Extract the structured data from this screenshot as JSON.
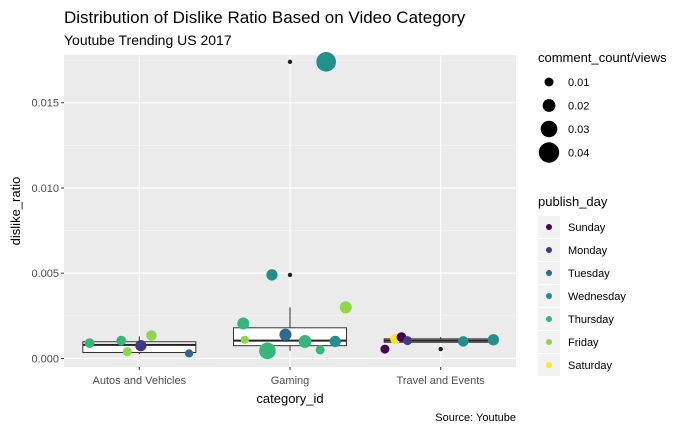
{
  "chart_data": {
    "type": "scatter",
    "title": "Distribution of Dislike Ratio Based on Video Category",
    "subtitle": "Youtube Trending US 2017",
    "xlabel": "category_id",
    "ylabel": "dislike_ratio",
    "caption": "Source: Youtube",
    "categories": [
      "Autos and Vehicles",
      "Gaming",
      "Travel and Events"
    ],
    "ylim": [
      -0.0005,
      0.0178
    ],
    "yticks": [
      0.0,
      0.005,
      0.01,
      0.015
    ],
    "ytick_labels": [
      "0.000",
      "0.005",
      "0.010",
      "0.015"
    ],
    "grid": true,
    "legend_placement": "right",
    "size_legend": {
      "title": "comment_count/views",
      "values": [
        0.01,
        0.02,
        0.03,
        0.04
      ],
      "labels": [
        "0.01",
        "0.02",
        "0.03",
        "0.04"
      ]
    },
    "color_legend": {
      "title": "publish_day",
      "items": [
        {
          "label": "Sunday",
          "color": "#440154"
        },
        {
          "label": "Monday",
          "color": "#443a83"
        },
        {
          "label": "Tuesday",
          "color": "#31688e"
        },
        {
          "label": "Wednesday",
          "color": "#21908c"
        },
        {
          "label": "Thursday",
          "color": "#35b779"
        },
        {
          "label": "Friday",
          "color": "#8fd744"
        },
        {
          "label": "Saturday",
          "color": "#fde725"
        }
      ]
    },
    "boxplots": [
      {
        "category": "Autos and Vehicles",
        "q1": 0.00035,
        "median": 0.0008,
        "q3": 0.00098,
        "whisker_low": 0.00025,
        "whisker_high": 0.0013
      },
      {
        "category": "Gaming",
        "q1": 0.00075,
        "median": 0.00105,
        "q3": 0.0018,
        "whisker_low": 0.00045,
        "whisker_high": 0.003,
        "outliers": [
          0.0049,
          0.0174
        ]
      },
      {
        "category": "Travel and Events",
        "q1": 0.00095,
        "median": 0.00105,
        "q3": 0.00115,
        "whisker_low": 0.00095,
        "whisker_high": 0.00125,
        "outliers": [
          0.00055
        ]
      }
    ],
    "points": [
      {
        "category": "Autos and Vehicles",
        "offset": -0.33,
        "y": 0.0009,
        "day": "Thursday",
        "size": 0.012
      },
      {
        "category": "Autos and Vehicles",
        "offset": -0.12,
        "y": 0.00105,
        "day": "Thursday",
        "size": 0.012
      },
      {
        "category": "Autos and Vehicles",
        "offset": -0.08,
        "y": 0.0004,
        "day": "Friday",
        "size": 0.01
      },
      {
        "category": "Autos and Vehicles",
        "offset": 0.01,
        "y": 0.00075,
        "day": "Monday",
        "size": 0.016
      },
      {
        "category": "Autos and Vehicles",
        "offset": 0.08,
        "y": 0.00135,
        "day": "Friday",
        "size": 0.014
      },
      {
        "category": "Autos and Vehicles",
        "offset": 0.33,
        "y": 0.0003,
        "day": "Tuesday",
        "size": 0.008
      },
      {
        "category": "Gaming",
        "offset": -0.31,
        "y": 0.00205,
        "day": "Thursday",
        "size": 0.018
      },
      {
        "category": "Gaming",
        "offset": -0.3,
        "y": 0.0011,
        "day": "Friday",
        "size": 0.008
      },
      {
        "category": "Gaming",
        "offset": -0.15,
        "y": 0.00045,
        "day": "Thursday",
        "size": 0.03
      },
      {
        "category": "Gaming",
        "offset": -0.12,
        "y": 0.0049,
        "day": "Wednesday",
        "size": 0.016
      },
      {
        "category": "Gaming",
        "offset": -0.03,
        "y": 0.0014,
        "day": "Tuesday",
        "size": 0.018
      },
      {
        "category": "Gaming",
        "offset": 0.1,
        "y": 0.001,
        "day": "Thursday",
        "size": 0.02
      },
      {
        "category": "Gaming",
        "offset": 0.2,
        "y": 0.0005,
        "day": "Thursday",
        "size": 0.01
      },
      {
        "category": "Gaming",
        "offset": 0.24,
        "y": 0.0174,
        "day": "Wednesday",
        "size": 0.038
      },
      {
        "category": "Gaming",
        "offset": 0.3,
        "y": 0.001,
        "day": "Wednesday",
        "size": 0.016
      },
      {
        "category": "Gaming",
        "offset": 0.37,
        "y": 0.003,
        "day": "Friday",
        "size": 0.018
      },
      {
        "category": "Travel and Events",
        "offset": -0.37,
        "y": 0.00055,
        "day": "Sunday",
        "size": 0.01
      },
      {
        "category": "Travel and Events",
        "offset": -0.3,
        "y": 0.00115,
        "day": "Saturday",
        "size": 0.014
      },
      {
        "category": "Travel and Events",
        "offset": -0.26,
        "y": 0.00125,
        "day": "Sunday",
        "size": 0.012
      },
      {
        "category": "Travel and Events",
        "offset": -0.22,
        "y": 0.00105,
        "day": "Monday",
        "size": 0.01
      },
      {
        "category": "Travel and Events",
        "offset": 0.15,
        "y": 0.001,
        "day": "Wednesday",
        "size": 0.014
      },
      {
        "category": "Travel and Events",
        "offset": 0.35,
        "y": 0.0011,
        "day": "Wednesday",
        "size": 0.016
      }
    ]
  }
}
